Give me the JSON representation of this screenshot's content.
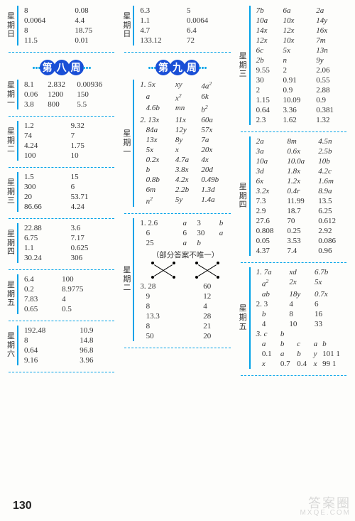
{
  "page_number": "130",
  "watermark": {
    "line1": "答案圈",
    "line2": "MXQE.COM"
  },
  "weeks": {
    "w8": "第八周",
    "w9": "第九周"
  },
  "note_text": "（部分答案不唯一）",
  "col1": {
    "sun": {
      "day": [
        "星",
        "期",
        "日"
      ],
      "rows": [
        [
          "8",
          "0.08"
        ],
        [
          "0.0064",
          "4.4"
        ],
        [
          "8",
          "18.75"
        ],
        [
          "11.5",
          "0.01"
        ]
      ]
    },
    "mon": {
      "day": [
        "星",
        "期",
        "一"
      ],
      "rows": [
        [
          "8.1",
          "2.832",
          "0.00936"
        ],
        [
          "0.06",
          "1200",
          "150"
        ],
        [
          "3.8",
          "800",
          "5.5"
        ]
      ]
    },
    "tue": {
      "day": [
        "星",
        "期",
        "二"
      ],
      "rows": [
        [
          "1.2",
          "9.32"
        ],
        [
          "74",
          "7"
        ],
        [
          "4.24",
          "1.75"
        ],
        [
          "100",
          "10"
        ]
      ]
    },
    "wed": {
      "day": [
        "星",
        "期",
        "三"
      ],
      "rows": [
        [
          "1.5",
          "15"
        ],
        [
          "300",
          "6"
        ],
        [
          "20",
          "53.71"
        ],
        [
          "86.66",
          "4.24"
        ]
      ]
    },
    "thu": {
      "day": [
        "星",
        "期",
        "四"
      ],
      "rows": [
        [
          "22.88",
          "3.6"
        ],
        [
          "6.75",
          "7.17"
        ],
        [
          "1.1",
          "0.625"
        ],
        [
          "30.24",
          "306"
        ]
      ]
    },
    "fri": {
      "day": [
        "星",
        "期",
        "五"
      ],
      "rows": [
        [
          "6.4",
          "100"
        ],
        [
          "0.2",
          "8.9775"
        ],
        [
          "7.83",
          "4"
        ],
        [
          "0.65",
          "0.5"
        ]
      ]
    },
    "sat": {
      "day": [
        "星",
        "期",
        "六"
      ],
      "rows": [
        [
          "192.48",
          "10.9"
        ],
        [
          "8",
          "14.8"
        ],
        [
          "0.64",
          "96.8"
        ],
        [
          "9.16",
          "3.96"
        ]
      ]
    }
  },
  "col2": {
    "sun": {
      "day": [
        "星",
        "期",
        "日"
      ],
      "rows": [
        [
          "6.3",
          "5"
        ],
        [
          "1.1",
          "0.0064"
        ],
        [
          "4.7",
          "6.4"
        ],
        [
          "133.12",
          "72"
        ]
      ]
    },
    "mon": {
      "day": [
        "星",
        "期",
        "一"
      ],
      "rows": [
        [
          "1. 5x",
          "xy",
          "4a²"
        ],
        [
          "   a",
          "x²",
          "6k"
        ],
        [
          "   4.6b",
          "mn",
          "b²"
        ],
        [
          "2. 13x",
          "11x",
          "60a"
        ],
        [
          "   84a",
          "12y",
          "57x"
        ],
        [
          "   13x",
          "8y",
          "7a"
        ],
        [
          "   5x",
          "x",
          "20x"
        ],
        [
          "   0.2x",
          "4.7a",
          "4x"
        ],
        [
          "   b",
          "3.8x",
          "20d"
        ],
        [
          "   0.8b",
          "4.2x",
          "0.49b"
        ],
        [
          "   6m",
          "2.2b",
          "1.3d"
        ],
        [
          "   n²",
          "5y",
          "1.4a"
        ]
      ]
    },
    "tue": {
      "day": [
        "星",
        "期",
        "二"
      ],
      "prelines": [
        [
          "1. 2.6",
          "a",
          "3",
          "b"
        ],
        [
          "   6",
          "6",
          "30",
          "a"
        ],
        [
          "   25",
          "a",
          "b",
          ""
        ]
      ],
      "rows": [
        [
          "3. 28",
          "60"
        ],
        [
          "   9",
          "12"
        ],
        [
          "   8",
          "4"
        ],
        [
          "   13.3",
          "28"
        ],
        [
          "   8",
          "21"
        ],
        [
          "   50",
          "20"
        ]
      ]
    }
  },
  "col3": {
    "wed": {
      "day": [
        "星",
        "期",
        "三"
      ],
      "rows": [
        [
          "7b",
          "6a",
          "2a"
        ],
        [
          "10a",
          "10x",
          "14y"
        ],
        [
          "14x",
          "12x",
          "16x"
        ],
        [
          "12x",
          "10x",
          "7m"
        ],
        [
          "6c",
          "5x",
          "13n"
        ],
        [
          "2b",
          "n",
          "9y"
        ],
        [
          "9.55",
          "2",
          "2.06"
        ],
        [
          "30",
          "0.91",
          "0.55"
        ],
        [
          "2",
          "0.9",
          "2.88"
        ],
        [
          "1.15",
          "10.09",
          "0.9"
        ],
        [
          "0.64",
          "3.36",
          "0.381"
        ],
        [
          "2.3",
          "1.62",
          "1.32"
        ]
      ]
    },
    "thu": {
      "day": [
        "星",
        "期",
        "四"
      ],
      "rows": [
        [
          "2a",
          "8m",
          "4.5n"
        ],
        [
          "3a",
          "0.6x",
          "2.5b"
        ],
        [
          "10a",
          "10.0a",
          "10b"
        ],
        [
          "3d",
          "1.8x",
          "4.2c"
        ],
        [
          "6x",
          "1.2x",
          "1.6m"
        ],
        [
          "3.2x",
          "0.4r",
          "8.9a"
        ],
        [
          "7.3",
          "11.99",
          "13.5"
        ],
        [
          "2.9",
          "18.7",
          "6.25"
        ],
        [
          "27.6",
          "70",
          "0.612"
        ],
        [
          "0.808",
          "0.25",
          "2.92"
        ],
        [
          "0.05",
          "3.53",
          "0.086"
        ],
        [
          "4.37",
          "7.4",
          "0.96"
        ]
      ]
    },
    "fri": {
      "day": [
        "星",
        "期",
        "五"
      ],
      "rows1": [
        [
          "1. 7a",
          "xd",
          "6.7b"
        ],
        [
          "   a²",
          "2x",
          "5x"
        ],
        [
          "   ab",
          "18y",
          "0.7x"
        ],
        [
          "2. 3",
          "4",
          "6",
          ""
        ],
        [
          "   b",
          "8",
          "16",
          ""
        ],
        [
          "   4",
          "10",
          "33",
          ""
        ]
      ],
      "rows2": [
        [
          "3. c",
          "b",
          "",
          "",
          ""
        ],
        [
          "   a",
          "b",
          "c",
          "a",
          "b"
        ],
        [
          "   0.1",
          "a",
          "b",
          "y",
          "101  1"
        ],
        [
          "   x",
          "0.7",
          "0.4",
          "x",
          "99   1"
        ]
      ]
    }
  }
}
